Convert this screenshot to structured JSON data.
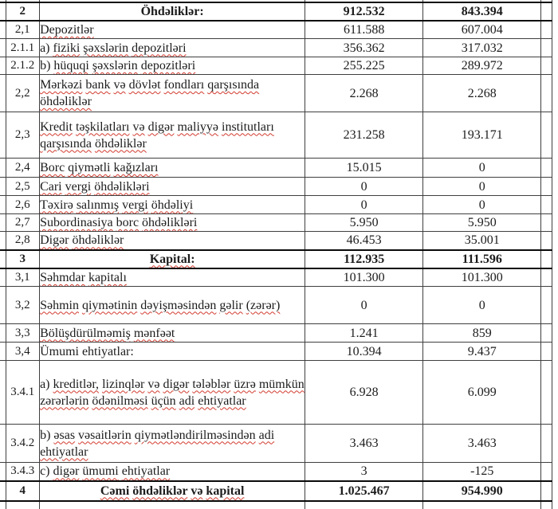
{
  "document": {
    "language": "az",
    "type": "balance-sheet-table"
  },
  "colors": {
    "background": "#ffffff",
    "text": "#1c1c1c",
    "grid_border": "#3f3f3f",
    "section_border": "#0a0a0a",
    "spellcheck_squiggle": "#d23a2e"
  },
  "table": {
    "rows": [
      {
        "num": "2",
        "label": "Öhdəliklər:",
        "v1": "912.532",
        "v2": "843.394",
        "section": true,
        "wavy": false
      },
      {
        "num": "2,1",
        "label": "Depozitlər",
        "v1": "611.588",
        "v2": "607.004",
        "section": false,
        "wavy": true
      },
      {
        "num": "2.1.1",
        "label": "a) fiziki şəxslərin depozitləri",
        "v1": "356.362",
        "v2": "317.032",
        "section": false,
        "wavy": true
      },
      {
        "num": "2.1.2",
        "label": "b) hüquqi şəxslərin depozitləri",
        "v1": "255.225",
        "v2": "289.972",
        "section": false,
        "wavy": true
      },
      {
        "num": "2,2",
        "label": "Mərkəzi bank və dövlət fondları qarşısında öhdəliklər",
        "v1": "2.268",
        "v2": "2.268",
        "section": false,
        "wavy": true
      },
      {
        "num": "2,3",
        "label": "Kredit təşkilatları və digər maliyyə institutları qarşısında öhdəliklər",
        "v1": "231.258",
        "v2": "193.171",
        "section": false,
        "wavy": true
      },
      {
        "num": "2,4",
        "label": "Borc qiymətli kağızları",
        "v1": "15.015",
        "v2": "0",
        "section": false,
        "wavy": true
      },
      {
        "num": "2,5",
        "label": "Cari vergi öhdəlikləri",
        "v1": "0",
        "v2": "0",
        "section": false,
        "wavy": true
      },
      {
        "num": "2,6",
        "label": "Təxirə salınmış vergi öhdəliyi",
        "v1": "0",
        "v2": "0",
        "section": false,
        "wavy": true
      },
      {
        "num": "2,7",
        "label": "Subordinasiya borc öhdəlikləri",
        "v1": "5.950",
        "v2": "5.950",
        "section": false,
        "wavy": true
      },
      {
        "num": "2,8",
        "label": "Digər öhdəliklər",
        "v1": "46.453",
        "v2": "35.001",
        "section": false,
        "wavy": true
      },
      {
        "num": "3",
        "label": "Kapital:",
        "v1": "112.935",
        "v2": "111.596",
        "section": true,
        "wavy": true
      },
      {
        "num": "3,1",
        "label": "Səhmdar kapitalı",
        "v1": "101.300",
        "v2": "101.300",
        "section": false,
        "wavy": true
      },
      {
        "num": "3,2",
        "label": "Səhmin qiymətinin dəyişməsindən gəlir (zərər)",
        "v1": "0",
        "v2": "0",
        "section": false,
        "wavy": true
      },
      {
        "num": "3,3",
        "label": "Bölüşdürülməmiş mənfəət",
        "v1": "1.241",
        "v2": "859",
        "section": false,
        "wavy": true
      },
      {
        "num": "3,4",
        "label": "Ümumi ehtiyatlar:",
        "v1": "10.394",
        "v2": "9.437",
        "section": false,
        "wavy": false
      },
      {
        "num": "3.4.1",
        "label": "a) kreditlər, lizinqlər və digər tələblər üzrə mümkün zərərlərin ödənilməsi üçün adi ehtiyatlar",
        "v1": "6.928",
        "v2": "6.099",
        "section": false,
        "wavy": true
      },
      {
        "num": "3.4.2",
        "label": "b) əsas vəsaitlərin qiymətləndirilməsindən adi ehtiyatlar",
        "v1": "3.463",
        "v2": "3.463",
        "section": false,
        "wavy": true
      },
      {
        "num": "3.4.3",
        "label": "c) digər ümumi ehtiyatlar",
        "v1": "3",
        "v2": "-125",
        "section": false,
        "wavy": true
      },
      {
        "num": "4",
        "label": "Cəmi öhdəliklər və kapital",
        "v1": "1.025.467",
        "v2": "954.990",
        "section": true,
        "wavy": true
      }
    ]
  }
}
